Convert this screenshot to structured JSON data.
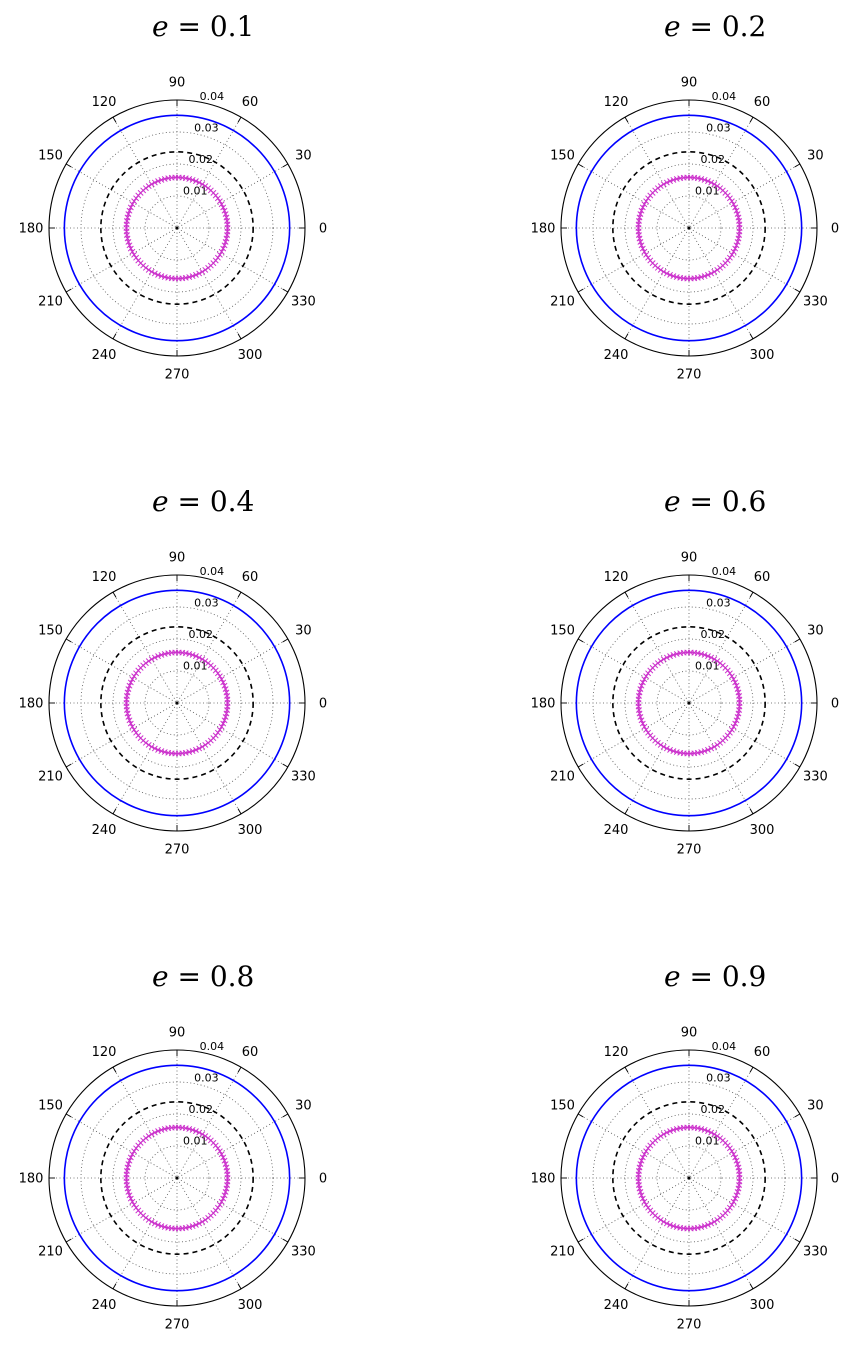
{
  "chart_data": [
    {
      "type": "polar-line",
      "title_var": "e",
      "title_eq": "= 0.1",
      "angle_ticks": [
        "0",
        "30",
        "60",
        "90",
        "120",
        "150",
        "180",
        "210",
        "240",
        "270",
        "300",
        "330"
      ],
      "radial_ticks": [
        "0.01",
        "0.02",
        "0.03",
        "0.04"
      ],
      "rlim": [
        0,
        0.04
      ],
      "grid": true,
      "series": [
        {
          "style": "solid",
          "color": "#0000ff",
          "r": 0.0352
        },
        {
          "style": "dashed",
          "color": "#000000",
          "r": 0.0238
        },
        {
          "style": "x-marker",
          "color": "#cc33cc",
          "r": 0.0158
        }
      ]
    },
    {
      "type": "polar-line",
      "title_var": "e",
      "title_eq": "= 0.2",
      "angle_ticks": [
        "0",
        "30",
        "60",
        "90",
        "120",
        "150",
        "180",
        "210",
        "240",
        "270",
        "300",
        "330"
      ],
      "radial_ticks": [
        "0.01",
        "0.02",
        "0.03",
        "0.04"
      ],
      "rlim": [
        0,
        0.04
      ],
      "grid": true,
      "series": [
        {
          "style": "solid",
          "color": "#0000ff",
          "r": 0.0352
        },
        {
          "style": "dashed",
          "color": "#000000",
          "r": 0.0238
        },
        {
          "style": "x-marker",
          "color": "#cc33cc",
          "r": 0.0158
        }
      ]
    },
    {
      "type": "polar-line",
      "title_var": "e",
      "title_eq": "= 0.4",
      "angle_ticks": [
        "0",
        "30",
        "60",
        "90",
        "120",
        "150",
        "180",
        "210",
        "240",
        "270",
        "300",
        "330"
      ],
      "radial_ticks": [
        "0.01",
        "0.02",
        "0.03",
        "0.04"
      ],
      "rlim": [
        0,
        0.04
      ],
      "grid": true,
      "series": [
        {
          "style": "solid",
          "color": "#0000ff",
          "r": 0.0352
        },
        {
          "style": "dashed",
          "color": "#000000",
          "r": 0.0238
        },
        {
          "style": "x-marker",
          "color": "#cc33cc",
          "r": 0.0158
        }
      ]
    },
    {
      "type": "polar-line",
      "title_var": "e",
      "title_eq": "= 0.6",
      "angle_ticks": [
        "0",
        "30",
        "60",
        "90",
        "120",
        "150",
        "180",
        "210",
        "240",
        "270",
        "300",
        "330"
      ],
      "radial_ticks": [
        "0.01",
        "0.02",
        "0.03",
        "0.04"
      ],
      "rlim": [
        0,
        0.04
      ],
      "grid": true,
      "series": [
        {
          "style": "solid",
          "color": "#0000ff",
          "r": 0.0352
        },
        {
          "style": "dashed",
          "color": "#000000",
          "r": 0.0238
        },
        {
          "style": "x-marker",
          "color": "#cc33cc",
          "r": 0.0158
        }
      ]
    },
    {
      "type": "polar-line",
      "title_var": "e",
      "title_eq": "= 0.8",
      "angle_ticks": [
        "0",
        "30",
        "60",
        "90",
        "120",
        "150",
        "180",
        "210",
        "240",
        "270",
        "300",
        "330"
      ],
      "radial_ticks": [
        "0.01",
        "0.02",
        "0.03",
        "0.04"
      ],
      "rlim": [
        0,
        0.04
      ],
      "grid": true,
      "series": [
        {
          "style": "solid",
          "color": "#0000ff",
          "r": 0.0352
        },
        {
          "style": "dashed",
          "color": "#000000",
          "r": 0.0238
        },
        {
          "style": "x-marker",
          "color": "#cc33cc",
          "r": 0.0158
        }
      ]
    },
    {
      "type": "polar-line",
      "title_var": "e",
      "title_eq": "= 0.9",
      "angle_ticks": [
        "0",
        "30",
        "60",
        "90",
        "120",
        "150",
        "180",
        "210",
        "240",
        "270",
        "300",
        "330"
      ],
      "radial_ticks": [
        "0.01",
        "0.02",
        "0.03",
        "0.04"
      ],
      "rlim": [
        0,
        0.04
      ],
      "grid": true,
      "series": [
        {
          "style": "solid",
          "color": "#0000ff",
          "r": 0.0352
        },
        {
          "style": "dashed",
          "color": "#000000",
          "r": 0.0238
        },
        {
          "style": "x-marker",
          "color": "#cc33cc",
          "r": 0.0158
        }
      ]
    }
  ]
}
